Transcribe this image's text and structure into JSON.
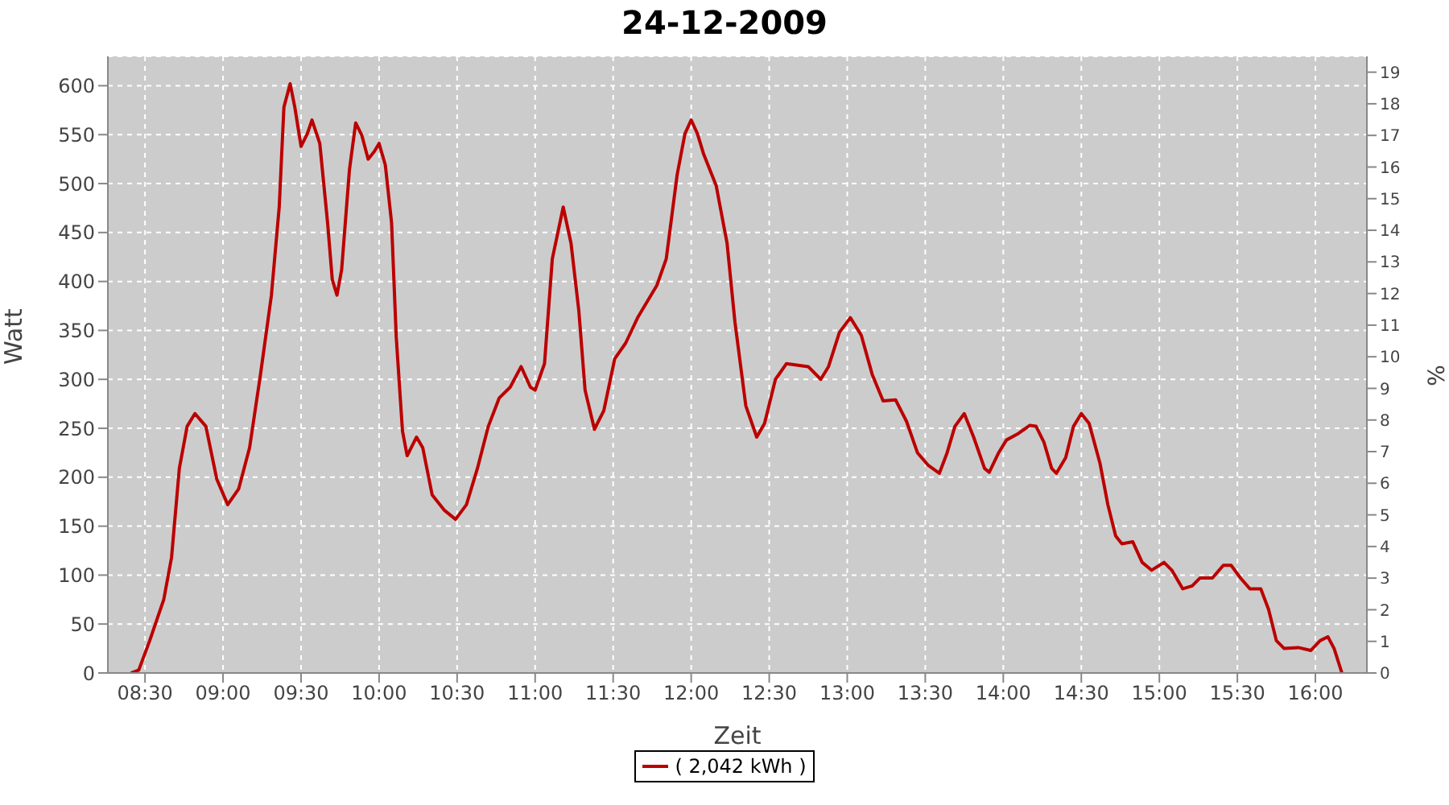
{
  "chart_data": {
    "type": "line",
    "title": "24-12-2009",
    "xlabel": "Zeit",
    "ylabel": "Watt",
    "y2label": "%",
    "xlim": [
      8.262,
      16.33
    ],
    "xticks": [
      {
        "value": 8.5,
        "label": "08:30"
      },
      {
        "value": 9,
        "label": "09:00"
      },
      {
        "value": 9.5,
        "label": "09:30"
      },
      {
        "value": 10,
        "label": "10:00"
      },
      {
        "value": 10.5,
        "label": "10:30"
      },
      {
        "value": 11,
        "label": "11:00"
      },
      {
        "value": 11.5,
        "label": "11:30"
      },
      {
        "value": 12,
        "label": "12:00"
      },
      {
        "value": 12.5,
        "label": "12:30"
      },
      {
        "value": 13,
        "label": "13:00"
      },
      {
        "value": 13.5,
        "label": "13:30"
      },
      {
        "value": 14,
        "label": "14:00"
      },
      {
        "value": 14.5,
        "label": "14:30"
      },
      {
        "value": 15,
        "label": "15:00"
      },
      {
        "value": 15.5,
        "label": "15:30"
      },
      {
        "value": 16,
        "label": "16:00"
      }
    ],
    "ylim": [
      0,
      630
    ],
    "yticks": [
      0,
      50,
      100,
      150,
      200,
      250,
      300,
      350,
      400,
      450,
      500,
      550,
      600
    ],
    "y2lim": [
      0,
      19.5
    ],
    "y2ticks": [
      0,
      1,
      2,
      3,
      4,
      5,
      6,
      7,
      8,
      9,
      10,
      11,
      12,
      13,
      14,
      15,
      16,
      17,
      18,
      19
    ],
    "grid": true,
    "legend": "bottom",
    "x": [
      8.41,
      8.46,
      8.53,
      8.62,
      8.67,
      8.72,
      8.77,
      8.82,
      8.89,
      8.96,
      9.03,
      9.1,
      9.17,
      9.24,
      9.31,
      9.36,
      9.39,
      9.43,
      9.46,
      9.5,
      9.54,
      9.57,
      9.62,
      9.67,
      9.7,
      9.73,
      9.76,
      9.81,
      9.85,
      9.89,
      9.93,
      9.97,
      10.0,
      10.04,
      10.08,
      10.11,
      10.15,
      10.18,
      10.24,
      10.28,
      10.34,
      10.42,
      10.49,
      10.56,
      10.63,
      10.7,
      10.77,
      10.84,
      10.91,
      10.97,
      11.0,
      11.06,
      11.11,
      11.18,
      11.23,
      11.28,
      11.32,
      11.38,
      11.44,
      11.51,
      11.58,
      11.66,
      11.78,
      11.84,
      11.91,
      11.96,
      12.0,
      12.04,
      12.08,
      12.16,
      12.23,
      12.28,
      12.35,
      12.42,
      12.47,
      12.54,
      12.61,
      12.75,
      12.83,
      12.88,
      12.95,
      13.02,
      13.09,
      13.16,
      13.23,
      13.31,
      13.38,
      13.45,
      13.52,
      13.59,
      13.64,
      13.69,
      13.75,
      13.81,
      13.88,
      13.91,
      13.97,
      14.02,
      14.09,
      14.17,
      14.21,
      14.26,
      14.31,
      14.34,
      14.4,
      14.45,
      14.5,
      14.55,
      14.62,
      14.67,
      14.72,
      14.76,
      14.83,
      14.89,
      14.95,
      15.03,
      15.08,
      15.15,
      15.21,
      15.26,
      15.34,
      15.41,
      15.46,
      15.52,
      15.58,
      15.65,
      15.7,
      15.75,
      15.8,
      15.89,
      15.97,
      16.03,
      16.08,
      16.12,
      16.17
    ],
    "series": [
      {
        "name": "( 2,042 kWh )",
        "color": "#bb0000",
        "values": [
          0,
          3,
          33,
          75,
          118,
          209,
          252,
          265,
          252,
          198,
          172,
          188,
          230,
          305,
          386,
          476,
          578,
          602,
          578,
          538,
          551,
          565,
          541,
          460,
          402,
          386,
          412,
          514,
          562,
          549,
          525,
          533,
          541,
          519,
          460,
          343,
          247,
          222,
          241,
          230,
          182,
          166,
          157,
          172,
          209,
          252,
          281,
          292,
          313,
          292,
          289,
          316,
          423,
          476,
          439,
          370,
          289,
          249,
          268,
          321,
          337,
          364,
          396,
          423,
          509,
          551,
          565,
          551,
          530,
          498,
          439,
          359,
          273,
          241,
          255,
          300,
          316,
          313,
          300,
          313,
          348,
          363,
          345,
          305,
          278,
          279,
          257,
          225,
          212,
          204,
          225,
          252,
          265,
          241,
          209,
          205,
          225,
          238,
          244,
          253,
          252,
          236,
          209,
          204,
          220,
          252,
          265,
          255,
          214,
          172,
          140,
          132,
          134,
          113,
          105,
          113,
          105,
          86,
          89,
          97,
          97,
          110,
          110,
          97,
          86,
          86,
          65,
          33,
          25,
          26,
          23,
          33,
          37,
          25,
          0
        ]
      }
    ]
  }
}
